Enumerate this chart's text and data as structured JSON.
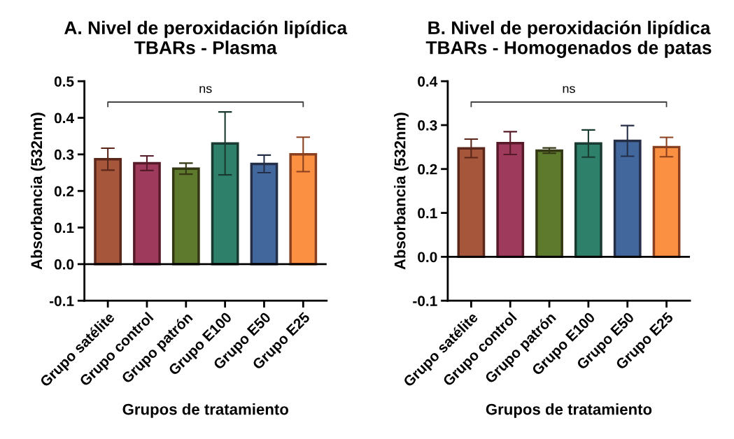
{
  "chart_data": [
    {
      "type": "bar",
      "title": "A. Nivel de peroxidación lipídica\nTBARs - Plasma",
      "xlabel": "Grupos de tratamiento",
      "ylabel": "Absorbancia (532nm)",
      "categories": [
        "Grupo satélite",
        "Grupo control",
        "Grupo patrón",
        "Grupo E100",
        "Grupo E50",
        "Grupo E25"
      ],
      "values": [
        0.287,
        0.276,
        0.261,
        0.33,
        0.274,
        0.3
      ],
      "errors": [
        0.03,
        0.02,
        0.015,
        0.086,
        0.024,
        0.047
      ],
      "colors": [
        "#a6573b",
        "#9e3a5c",
        "#5e7a2c",
        "#2e806a",
        "#41679c",
        "#fb8f42"
      ],
      "ylim": [
        -0.1,
        0.5
      ],
      "yticks": [
        -0.1,
        {
          "value": 0,
          "label": "0.0"
        },
        0.1,
        0.2,
        0.3,
        0.4,
        0.5
      ],
      "grid": false,
      "ref_lines": [
        {
          "axis": "y",
          "value": 0,
          "color": "#000000"
        }
      ],
      "annotations": [
        "ns"
      ]
    },
    {
      "type": "bar",
      "title": "B. Nivel de peroxidación lipídica\nTBARs - Homogenados de patas",
      "xlabel": "Grupos de tratamiento",
      "ylabel": "Absorbancia (532nm)",
      "categories": [
        "Grupo satélite",
        "Grupo control",
        "Grupo patrón",
        "Grupo E100",
        "Grupo E50",
        "Grupo E25"
      ],
      "values": [
        0.247,
        0.259,
        0.242,
        0.258,
        0.264,
        0.25
      ],
      "errors": [
        0.021,
        0.026,
        0.006,
        0.031,
        0.035,
        0.022
      ],
      "colors": [
        "#a6573b",
        "#9e3a5c",
        "#5e7a2c",
        "#2e806a",
        "#41679c",
        "#fb8f42"
      ],
      "ylim": [
        -0.1,
        0.4
      ],
      "yticks": [
        -0.1,
        {
          "value": 0,
          "label": "0.0"
        },
        0.1,
        0.2,
        0.3,
        0.4
      ],
      "grid": false,
      "ref_lines": [
        {
          "axis": "y",
          "value": 0,
          "color": "#000000"
        }
      ],
      "annotations": [
        "ns"
      ]
    }
  ]
}
